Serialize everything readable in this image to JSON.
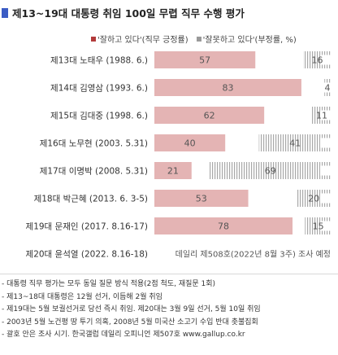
{
  "title": "제13~19대 대통령 취임 100일 무렵 직무 수행 평가",
  "legend": {
    "positive": "'잘하고 있다'(직무 긍정률)",
    "negative": "'잘못하고 있다'(부정률, %)"
  },
  "colors": {
    "title_marker": "#3b5cc4",
    "positive": "#e4b4b4",
    "negative_hatch": "#a8a8a8",
    "legend_positive": "#b23a3a"
  },
  "chart_data": {
    "type": "bar",
    "orientation": "horizontal",
    "stacked": true,
    "categories": [
      "제13대 노태우 (1988. 6.)",
      "제14대 김영삼 (1993. 6.)",
      "제15대 김대중 (1998. 6.)",
      "제16대 노무현 (2003. 5.31)",
      "제17대 이명박 (2008. 5.31)",
      "제18대 박근혜 (2013. 6. 3-5)",
      "제19대 문재인 (2017. 8.16-17)",
      "제20대 윤석열 (2022. 8.16-18)"
    ],
    "series": [
      {
        "name": "'잘하고 있다'(직무 긍정률)",
        "values": [
          57,
          83,
          62,
          40,
          21,
          53,
          78,
          null
        ]
      },
      {
        "name": "'잘못하고 있다'(부정률, %)",
        "values": [
          16,
          4,
          11,
          41,
          69,
          20,
          15,
          null
        ]
      }
    ],
    "xlim": [
      0,
      100
    ],
    "pending_text": "데일리 제508호(2022년 8월 3주) 조사 예정"
  },
  "notes": [
    "- 대통령 직무 평가는 모두 동일 질문 방식 적용(2점 척도, 재질문 1회)",
    "- 제13~18대 대통령은 12월 선거, 이듬해 2월 취임",
    "- 제19대는 5월 보궐선거로 당선 즉시 취임. 제20대는 3월 9일 선거, 5월 10일 취임",
    "- 2003년 5월 노건평 땅 투기 의혹, 2008년 5월 미국산 소고기 수입 반대 촛불집회",
    "- 괄호 안은 조사 시기. 한국갤럽 데일리 오피니언 제507호 www.gallup.co.kr"
  ]
}
